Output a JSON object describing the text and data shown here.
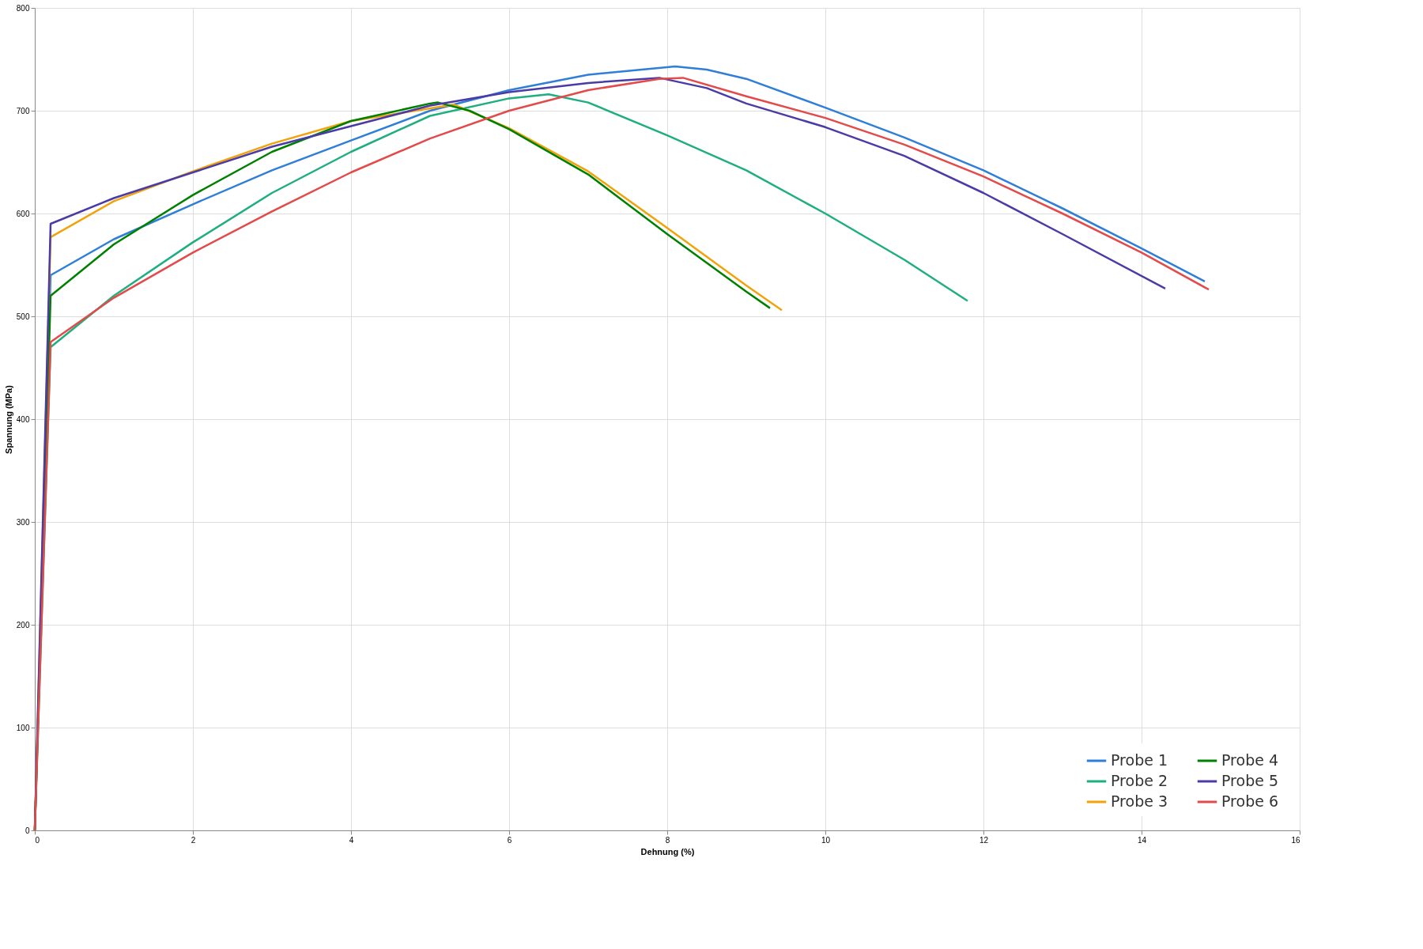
{
  "chart_data": {
    "type": "line",
    "xlabel": "Dehnung (%)",
    "ylabel": "Spannung (MPa)",
    "xlim": [
      0,
      16
    ],
    "xticks": [
      0,
      2,
      4,
      6,
      8,
      10,
      12,
      14,
      16
    ],
    "ylim": [
      0,
      800
    ],
    "yticks": [
      0,
      100,
      200,
      300,
      400,
      500,
      600,
      700,
      800
    ],
    "grid": true,
    "legend": "bottom right",
    "line_style": "solid",
    "series": [
      {
        "name": "Probe 1",
        "color": "#2f7ed8",
        "x": [
          0,
          0.2,
          1,
          2,
          3,
          4,
          5,
          6,
          7,
          8.1,
          8.5,
          9,
          10,
          11,
          12,
          13,
          14,
          14.8
        ],
        "values": [
          0,
          540,
          575,
          609,
          642,
          671,
          700,
          720,
          735,
          743,
          740,
          731,
          703,
          674,
          642,
          605,
          566,
          534
        ]
      },
      {
        "name": "Probe 2",
        "color": "#1fae7f",
        "x": [
          0,
          0.2,
          1,
          2,
          3,
          4,
          5,
          6,
          6.5,
          7,
          8,
          9,
          10,
          11,
          11.8
        ],
        "values": [
          0,
          470,
          520,
          572,
          620,
          660,
          695,
          712,
          716,
          708,
          676,
          642,
          600,
          555,
          515
        ]
      },
      {
        "name": "Probe 3",
        "color": "#f0a30a",
        "x": [
          0,
          0.2,
          1,
          2,
          3,
          4,
          5.3,
          6,
          7,
          8,
          9,
          9.45
        ],
        "values": [
          0,
          577,
          612,
          641,
          668,
          690,
          706,
          683,
          641,
          586,
          530,
          506
        ]
      },
      {
        "name": "Probe 4",
        "color": "#008000",
        "x": [
          0,
          0.2,
          1,
          2,
          3,
          4,
          5,
          5.1,
          5.5,
          6,
          7,
          8,
          9,
          9.3
        ],
        "values": [
          0,
          520,
          570,
          618,
          660,
          690,
          707,
          708,
          700,
          682,
          638,
          580,
          524,
          508
        ]
      },
      {
        "name": "Probe 5",
        "color": "#4b3ba6",
        "x": [
          0,
          0.2,
          1,
          2,
          3,
          4,
          5,
          6,
          7,
          7.9,
          8.5,
          9,
          10,
          11,
          12,
          13,
          14.3
        ],
        "values": [
          0,
          590,
          615,
          640,
          665,
          685,
          705,
          718,
          727,
          732,
          722,
          707,
          684,
          656,
          620,
          580,
          527
        ]
      },
      {
        "name": "Probe 6",
        "color": "#e34a4a",
        "x": [
          0,
          0.2,
          1,
          2,
          3,
          4,
          5,
          6,
          7,
          7.9,
          8.2,
          9,
          10,
          11,
          12,
          13,
          14,
          14.85
        ],
        "values": [
          0,
          475,
          518,
          562,
          602,
          640,
          673,
          700,
          720,
          731,
          732,
          714,
          693,
          667,
          636,
          600,
          562,
          526
        ]
      }
    ]
  }
}
